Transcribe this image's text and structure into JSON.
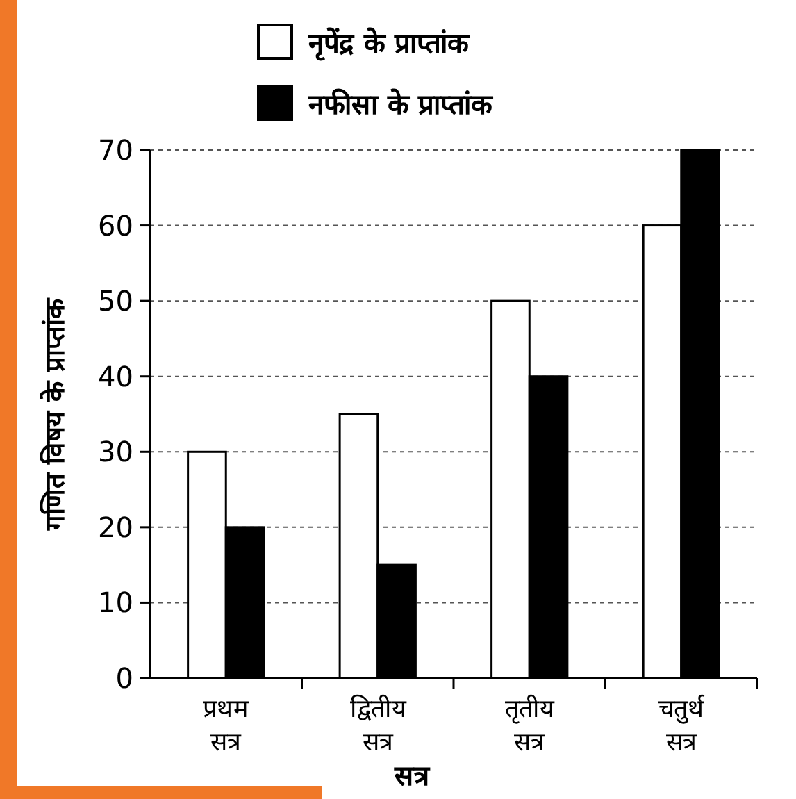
{
  "chart_data": {
    "type": "bar",
    "xlabel": "सत्र",
    "ylabel": "गणित विषय के प्राप्तांक",
    "categories": [
      "प्रथम सत्र",
      "द्वितीय सत्र",
      "तृतीय सत्र",
      "चतुर्थ सत्र"
    ],
    "series": [
      {
        "name": "नृपेंद्र के प्राप्तांक",
        "color": "#ffffff",
        "values": [
          30,
          35,
          50,
          60
        ]
      },
      {
        "name": "नफीसा के प्राप्तांक",
        "color": "#000000",
        "values": [
          20,
          15,
          40,
          70
        ]
      }
    ],
    "ylim": [
      0,
      70
    ],
    "yticks": [
      0,
      10,
      20,
      30,
      40,
      50,
      60,
      70
    ],
    "grid": "y",
    "legend": "top"
  }
}
